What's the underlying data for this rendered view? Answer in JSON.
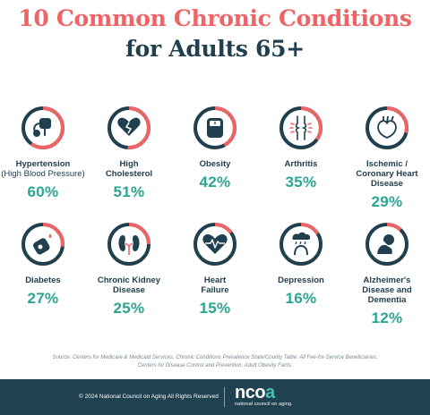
{
  "title_line1": "10 Common Chronic Conditions",
  "title_line2": "for Adults 65+",
  "colors": {
    "accent": "#ee6466",
    "navy": "#21404f",
    "teal": "#2aa592",
    "footer": "#1f4150"
  },
  "conditions": [
    {
      "name": "Hypertension",
      "sub": "(High Blood Pressure)",
      "percent": "60%",
      "fraction": 0.6,
      "icon": "blood-pressure-cuff-icon"
    },
    {
      "name": "High Cholesterol",
      "sub": "",
      "percent": "51%",
      "fraction": 0.51,
      "icon": "broken-heart-icon"
    },
    {
      "name": "Obesity",
      "sub": "",
      "percent": "42%",
      "fraction": 0.42,
      "icon": "scale-icon"
    },
    {
      "name": "Arthritis",
      "sub": "",
      "percent": "35%",
      "fraction": 0.35,
      "icon": "joint-icon"
    },
    {
      "name": "Ischemic / Coronary Heart Disease",
      "sub": "",
      "percent": "29%",
      "fraction": 0.29,
      "icon": "anatomical-heart-icon"
    },
    {
      "name": "Diabetes",
      "sub": "",
      "percent": "27%",
      "fraction": 0.27,
      "icon": "glucose-meter-icon"
    },
    {
      "name": "Chronic Kidney Disease",
      "sub": "",
      "percent": "25%",
      "fraction": 0.25,
      "icon": "kidneys-icon"
    },
    {
      "name": "Heart Failure",
      "sub": "",
      "percent": "15%",
      "fraction": 0.15,
      "icon": "heartbeat-icon"
    },
    {
      "name": "Depression",
      "sub": "",
      "percent": "16%",
      "fraction": 0.16,
      "icon": "rain-cloud-head-icon"
    },
    {
      "name": "Alzheimer's Disease and Dementia",
      "sub": "",
      "percent": "12%",
      "fraction": 0.12,
      "icon": "head-in-hands-icon"
    }
  ],
  "source_line1": "Source: Centers for Medicare & Medicaid Services, Chronic Conditions Prevalence State/County Table: All Fee-for-Service Beneficiaries.",
  "source_line2": "Centers for Disease Control and Prevention. Adult Obesity Facts.",
  "footer": {
    "copyright": "© 2024 National Council on Aging All Rights Reserved",
    "brand": "nco",
    "brand_accent": "a",
    "brand_sub": "national council on aging."
  }
}
